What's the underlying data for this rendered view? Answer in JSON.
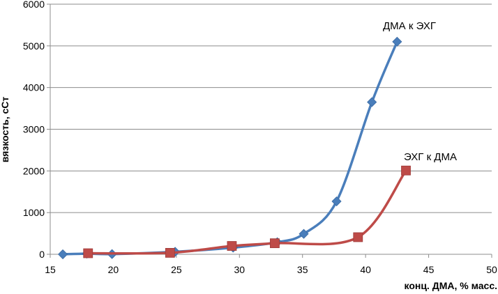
{
  "chart_data": {
    "type": "scatter",
    "title": "",
    "xlabel": "конц. ДМА, % масс.",
    "ylabel": "вязкость, сСт",
    "xlim": [
      15,
      50
    ],
    "ylim": [
      0,
      6000
    ],
    "xticks": [
      15,
      20,
      25,
      30,
      35,
      40,
      45,
      50
    ],
    "yticks": [
      0,
      1000,
      2000,
      3000,
      4000,
      5000,
      6000
    ],
    "grid": "horizontal",
    "legend": "none",
    "series": [
      {
        "name": "ДМА к ЭХГ",
        "color": "#4a7ebb",
        "marker": "diamond",
        "smooth": true,
        "x": [
          16,
          17.9,
          19.9,
          24.9,
          29.5,
          33,
          35.1,
          37.7,
          40.5,
          42.5
        ],
        "y": [
          0,
          15,
          5,
          60,
          160,
          290,
          490,
          1270,
          3650,
          5100
        ]
      },
      {
        "name": "ЭХГ к ДМА",
        "color": "#be4b48",
        "marker": "square",
        "smooth": true,
        "x": [
          18,
          24.5,
          29.4,
          32.8,
          39.4,
          43.2
        ],
        "y": [
          25,
          35,
          200,
          265,
          410,
          2010
        ]
      }
    ]
  }
}
